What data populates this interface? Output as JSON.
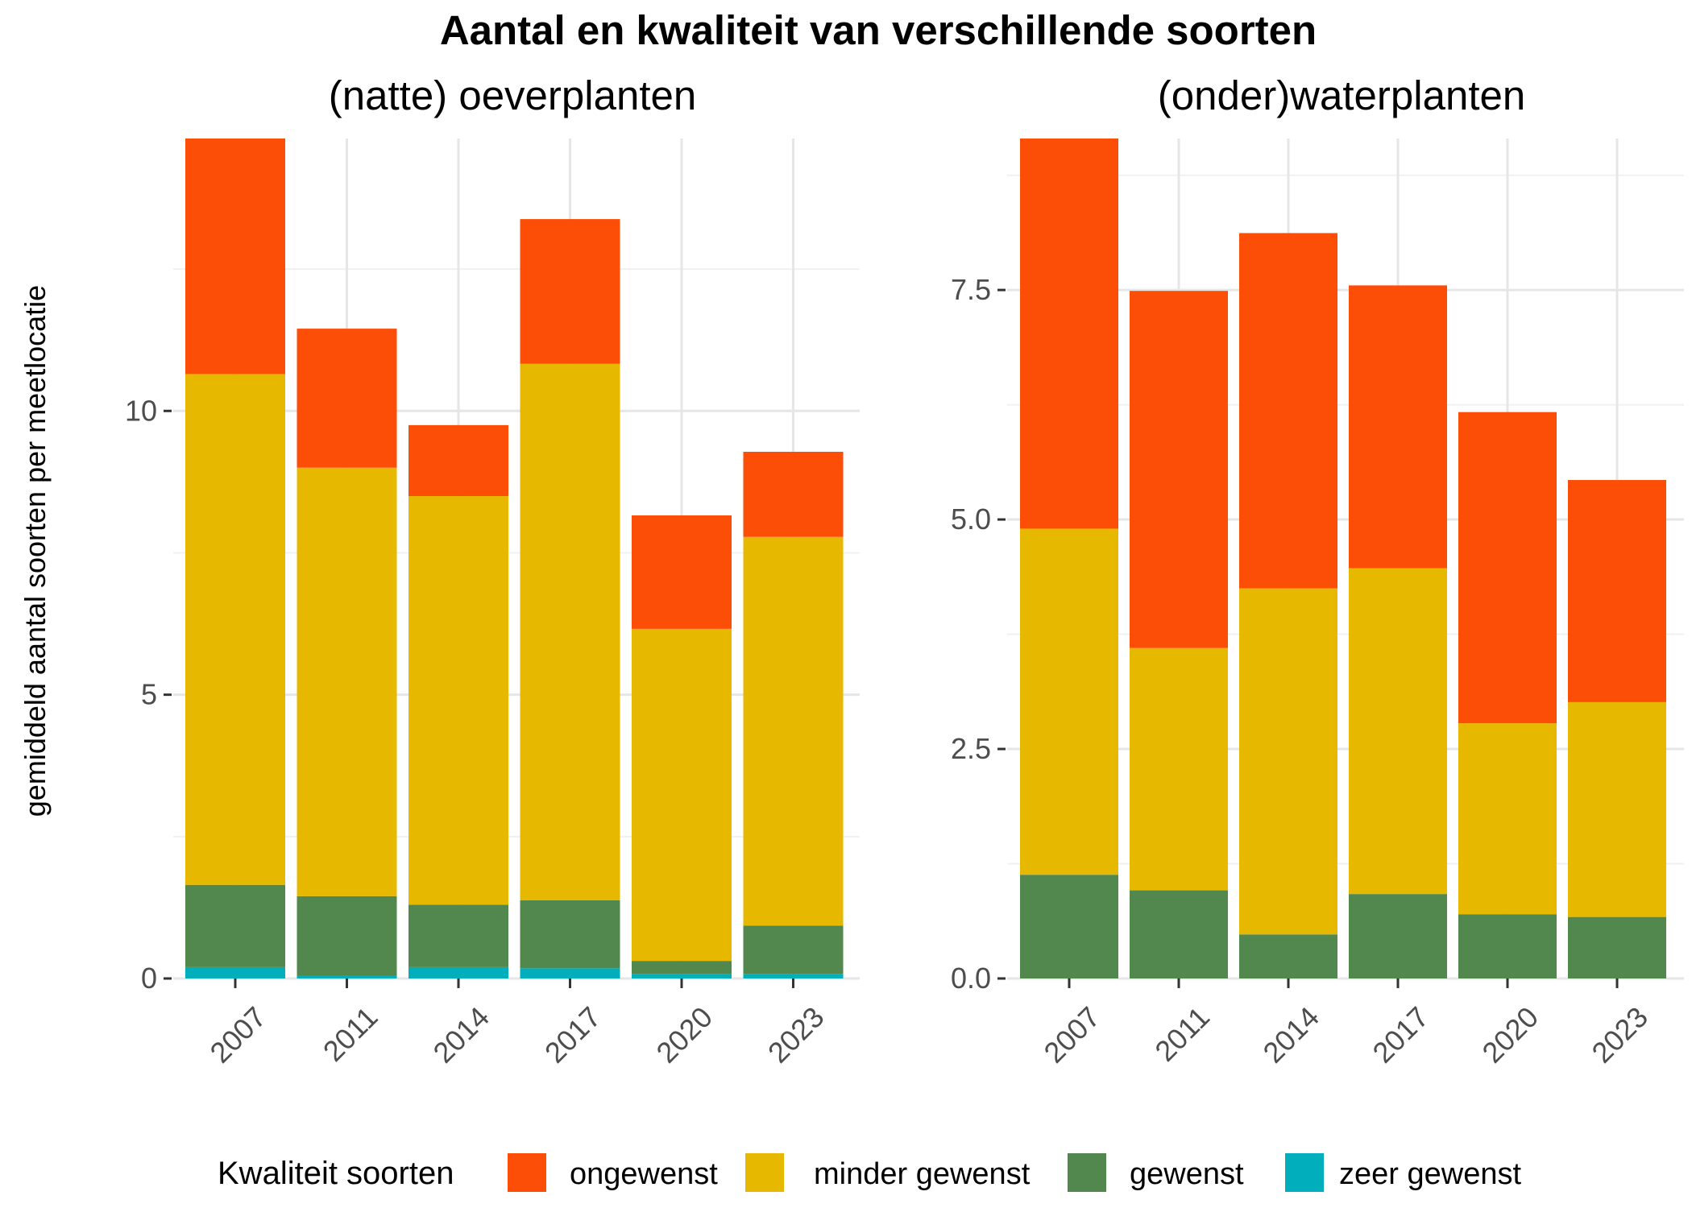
{
  "title": "Aantal en kwaliteit van verschillende soorten",
  "ylabel": "gemiddeld aantal soorten per meetlocatie",
  "legend_title": "Kwaliteit soorten",
  "colors": {
    "ongewenst": "#FC4E07",
    "minder gewenst": "#E7B800",
    "gewenst": "#52884E",
    "zeer gewenst": "#00AFBB"
  },
  "chart_data": [
    {
      "type": "bar",
      "stacked": true,
      "subtitle": "(natte) oeverplanten",
      "categories": [
        "2007",
        "2011",
        "2014",
        "2017",
        "2020",
        "2023"
      ],
      "ylim": [
        0,
        14.8
      ],
      "yticks": [
        0,
        5,
        10
      ],
      "ytick_labels": [
        "0",
        "5",
        "10"
      ],
      "series": [
        {
          "name": "zeer gewenst",
          "values": [
            0.2,
            0.05,
            0.2,
            0.18,
            0.08,
            0.08
          ]
        },
        {
          "name": "gewenst",
          "values": [
            1.45,
            1.4,
            1.1,
            1.2,
            0.23,
            0.85
          ]
        },
        {
          "name": "minder gewenst",
          "values": [
            9.0,
            7.55,
            7.2,
            9.45,
            5.85,
            6.85
          ]
        },
        {
          "name": "ongewenst",
          "values": [
            4.15,
            2.45,
            1.25,
            2.55,
            2.0,
            1.5
          ]
        }
      ]
    },
    {
      "type": "bar",
      "stacked": true,
      "subtitle": "(onder)waterplanten",
      "categories": [
        "2007",
        "2011",
        "2014",
        "2017",
        "2020",
        "2023"
      ],
      "ylim": [
        0,
        9.15
      ],
      "yticks": [
        0,
        2.5,
        5,
        7.5
      ],
      "ytick_labels": [
        "0.0",
        "2.5",
        "5.0",
        "7.5"
      ],
      "series": [
        {
          "name": "zeer gewenst",
          "values": [
            0,
            0,
            0,
            0,
            0,
            0
          ]
        },
        {
          "name": "gewenst",
          "values": [
            1.13,
            0.96,
            0.48,
            0.92,
            0.7,
            0.67
          ]
        },
        {
          "name": "minder gewenst",
          "values": [
            3.77,
            2.64,
            3.77,
            3.55,
            2.08,
            2.34
          ]
        },
        {
          "name": "ongewenst",
          "values": [
            4.25,
            3.89,
            3.87,
            3.08,
            3.39,
            2.42
          ]
        }
      ]
    }
  ]
}
